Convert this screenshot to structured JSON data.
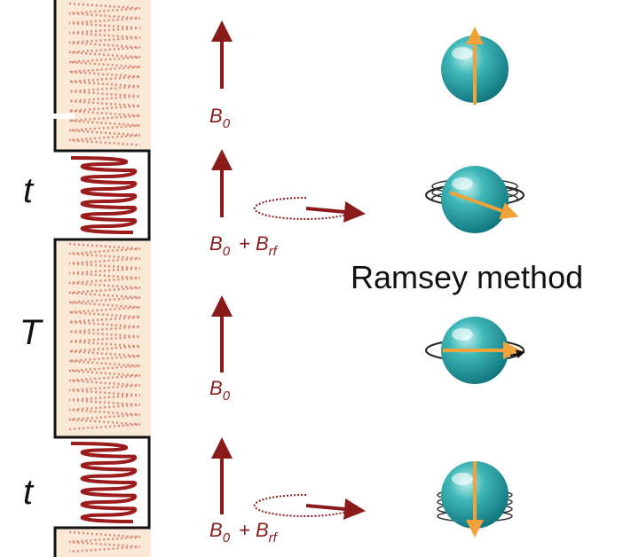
{
  "time_labels": [
    "t",
    "T",
    "t"
  ],
  "field_labels": [
    {
      "symbol": "B",
      "subscript": "0"
    },
    {
      "symbol": "B",
      "subscript": "0",
      "added": "+ B",
      "added_subscript": "rf"
    },
    {
      "symbol": "B",
      "subscript": "0"
    },
    {
      "symbol": "B",
      "subscript": "0",
      "added": "+ B",
      "added_subscript": "rf"
    }
  ],
  "title": "Ramsey method"
}
